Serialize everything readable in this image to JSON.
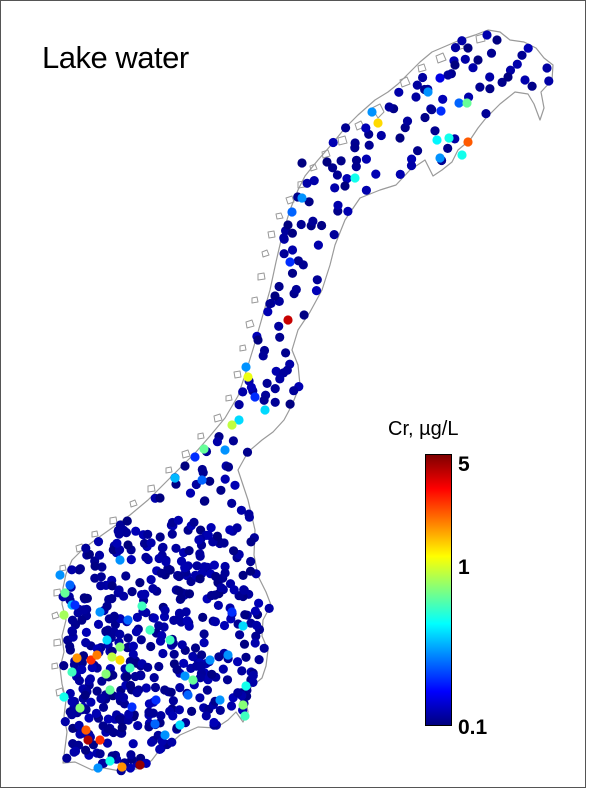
{
  "title": "Lake water",
  "legend": {
    "title": "Cr, µg/L",
    "scale": "log",
    "ticks": [
      "5",
      "1",
      "0.1"
    ],
    "range": [
      0.1,
      6
    ],
    "colormap": [
      "#00007f",
      "#0000ff",
      "#007fff",
      "#00ffff",
      "#7fff7f",
      "#ffff00",
      "#ff7f00",
      "#ff0000",
      "#7f0000"
    ]
  },
  "map": {
    "outline_color": "#9a9a9a",
    "dominant_value": 0.1,
    "points": [
      [
        487,
        35,
        0.12
      ],
      [
        497,
        40,
        0.1
      ],
      [
        468,
        48,
        0.1
      ],
      [
        478,
        60,
        0.1
      ],
      [
        455,
        65,
        0.1
      ],
      [
        508,
        77,
        0.1
      ],
      [
        525,
        80,
        0.12
      ],
      [
        440,
        78,
        0.15
      ],
      [
        428,
        92,
        0.3
      ],
      [
        459,
        103,
        0.25
      ],
      [
        467,
        103,
        0.7
      ],
      [
        441,
        111,
        0.2
      ],
      [
        378,
        123,
        1.5
      ],
      [
        372,
        112,
        0.3
      ],
      [
        400,
        138,
        0.1
      ],
      [
        449,
        138,
        0.5
      ],
      [
        468,
        142,
        2.5
      ],
      [
        462,
        155,
        0.5
      ],
      [
        437,
        140,
        0.45
      ],
      [
        440,
        158,
        0.3
      ],
      [
        355,
        178,
        0.5
      ],
      [
        345,
        186,
        0.1
      ],
      [
        302,
        198,
        0.3
      ],
      [
        302,
        163,
        0.1
      ],
      [
        327,
        162,
        0.1
      ],
      [
        292,
        212,
        0.25
      ],
      [
        288,
        225,
        0.1
      ],
      [
        290,
        262,
        0.2
      ],
      [
        288,
        320,
        4.5
      ],
      [
        275,
        296,
        0.1
      ],
      [
        258,
        340,
        0.1
      ],
      [
        246,
        367,
        0.3
      ],
      [
        248,
        377,
        1.2
      ],
      [
        255,
        397,
        0.2
      ],
      [
        265,
        410,
        0.4
      ],
      [
        239,
        420,
        0.4
      ],
      [
        232,
        425,
        1.0
      ],
      [
        204,
        449,
        0.7
      ],
      [
        175,
        478,
        0.35
      ],
      [
        195,
        457,
        0.2
      ],
      [
        185,
        466,
        0.1
      ],
      [
        160,
        498,
        0.1
      ],
      [
        128,
        545,
        0.1
      ],
      [
        120,
        560,
        0.3
      ],
      [
        65,
        593,
        0.7
      ],
      [
        72,
        605,
        0.35
      ],
      [
        64,
        615,
        0.9
      ],
      [
        75,
        605,
        0.2
      ],
      [
        77,
        658,
        2.0
      ],
      [
        91,
        660,
        3.0
      ],
      [
        97,
        655,
        2.2
      ],
      [
        112,
        657,
        1.0
      ],
      [
        120,
        660,
        1.5
      ],
      [
        106,
        674,
        0.8
      ],
      [
        110,
        690,
        0.7
      ],
      [
        130,
        668,
        0.6
      ],
      [
        120,
        647,
        0.8
      ],
      [
        107,
        640,
        0.4
      ],
      [
        72,
        672,
        0.6
      ],
      [
        86,
        730,
        2.5
      ],
      [
        88,
        740,
        5.0
      ],
      [
        100,
        740,
        3.0
      ],
      [
        98,
        768,
        0.3
      ],
      [
        110,
        761,
        0.5
      ],
      [
        122,
        767,
        2.0
      ],
      [
        140,
        765,
        5.5
      ],
      [
        80,
        708,
        0.8
      ],
      [
        64,
        697,
        0.5
      ],
      [
        185,
        676,
        0.3
      ],
      [
        193,
        680,
        0.7
      ],
      [
        243,
        705,
        0.8
      ],
      [
        246,
        686,
        0.5
      ],
      [
        245,
        716,
        0.6
      ],
      [
        243,
        626,
        0.4
      ],
      [
        228,
        655,
        0.3
      ],
      [
        232,
        612,
        0.2
      ],
      [
        170,
        640,
        0.6
      ],
      [
        150,
        630,
        0.6
      ],
      [
        142,
        606,
        0.6
      ],
      [
        155,
        724,
        0.25
      ],
      [
        165,
        735,
        0.3
      ],
      [
        180,
        725,
        0.4
      ],
      [
        156,
        700,
        0.2
      ],
      [
        60,
        575,
        0.3
      ],
      [
        70,
        585,
        0.25
      ],
      [
        100,
        612,
        0.3
      ],
      [
        128,
        620,
        0.25
      ],
      [
        210,
        660,
        0.3
      ],
      [
        220,
        700,
        0.3
      ],
      [
        132,
        707,
        0.2
      ],
      [
        188,
        695,
        0.25
      ],
      [
        225,
        450,
        0.3
      ],
      [
        202,
        480,
        0.25
      ]
    ]
  }
}
